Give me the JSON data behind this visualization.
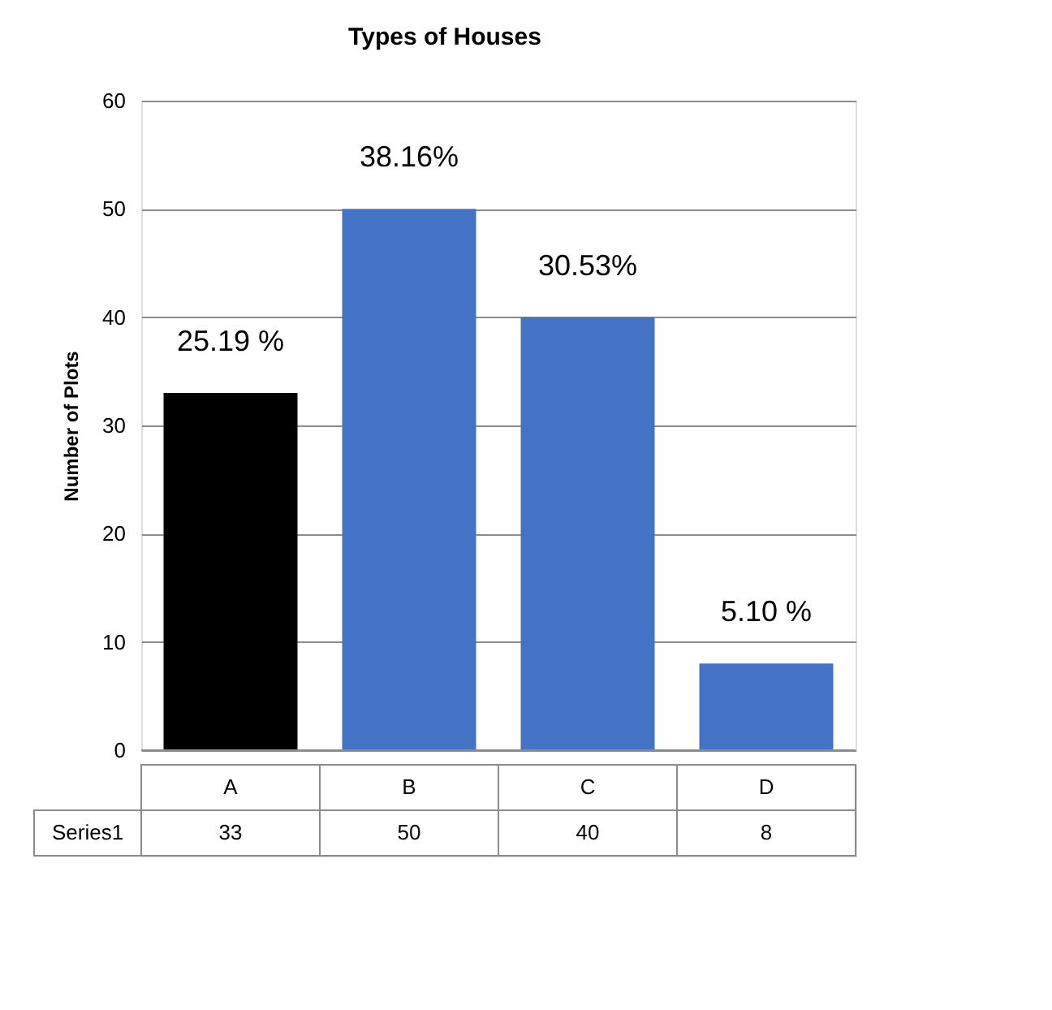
{
  "chart_data": {
    "type": "bar",
    "title": "Types of Houses",
    "ylabel": "Number of Plots",
    "categories": [
      "A",
      "B",
      "C",
      "D"
    ],
    "series": [
      {
        "name": "Series1",
        "colors": [
          "#000000",
          "#4472c4",
          "#4472c4",
          "#4472c4"
        ],
        "values": [
          33,
          50,
          40,
          8
        ],
        "value_labels": [
          "33",
          "50",
          "40",
          "8"
        ]
      }
    ],
    "annotations": [
      {
        "text": "25.19 %",
        "x": "A",
        "y": 33
      },
      {
        "text": "38.16%",
        "x": "B",
        "y": 50
      },
      {
        "text": "30.53%",
        "x": "C",
        "y": 40
      },
      {
        "text": "5.10 %",
        "x": "D",
        "y": 8
      }
    ],
    "ylim": [
      0,
      60
    ],
    "yticks": [
      0,
      10,
      20,
      30,
      40,
      50,
      60
    ],
    "grid": "y"
  }
}
